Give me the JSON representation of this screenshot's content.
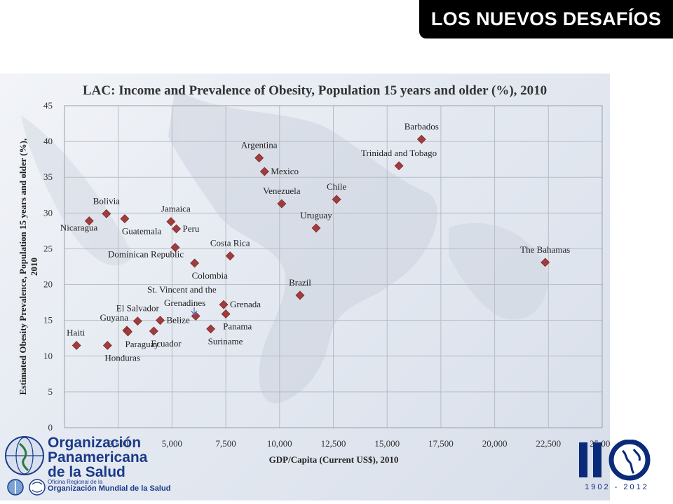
{
  "slide": {
    "title": "LOS NUEVOS DESAFÍOS"
  },
  "logos": {
    "ops_lines": [
      "Organización",
      "Panamericana",
      "de la Salud"
    ],
    "ops_small_lines": [
      "Oficina Regional de la"
    ],
    "oms_line": "Organización Mundial de la Salud",
    "anniversary_number": "110",
    "anniversary_years": "1902 - 2012"
  },
  "colors": {
    "marker": "#a23c3c",
    "grid": "#b8bcc4",
    "title_bar": "#000000",
    "logo_blue": "#1a3a8a"
  },
  "chart_data": {
    "type": "scatter",
    "title": "LAC: Income and Prevalence of Obesity, Population 15 years and older (%), 2010",
    "xlabel": "GDP/Capita (Current US$), 2010",
    "ylabel_lines": [
      "Estimated Obesity Prevalence, Population 15 years and older (%),",
      "2010"
    ],
    "xlim": [
      0,
      25000
    ],
    "ylim": [
      0,
      45
    ],
    "x_ticks": [
      0,
      2500,
      5000,
      7500,
      10000,
      12500,
      15000,
      17500,
      20000,
      22500,
      25000
    ],
    "x_tick_labels": [
      "",
      "2,500",
      "5,000",
      "7,500",
      "10,000",
      "12,500",
      "15,000",
      "17,500",
      "20,000",
      "22,500",
      "25,000"
    ],
    "y_ticks": [
      0,
      5,
      10,
      15,
      20,
      25,
      30,
      35,
      40,
      45
    ],
    "y_tick_labels": [
      "0",
      "5",
      "10",
      "15",
      "20",
      "25",
      "30",
      "35",
      "40",
      "45"
    ],
    "grid": true,
    "marker": "diamond",
    "points": [
      {
        "name": "Haiti",
        "x": 560,
        "y": 11.5,
        "lab": "above-right"
      },
      {
        "name": "Honduras",
        "x": 2000,
        "y": 11.5,
        "lab": "below-right"
      },
      {
        "name": "Nicaragua",
        "x": 1150,
        "y": 28.9,
        "lab": "below-left"
      },
      {
        "name": "Bolivia",
        "x": 1950,
        "y": 29.9,
        "lab": "above"
      },
      {
        "name": "Guatemala",
        "x": 2800,
        "y": 29.2,
        "lab": "below-right"
      },
      {
        "name": "Guyana",
        "x": 2900,
        "y": 13.6,
        "lab": "above-left"
      },
      {
        "name": "Paraguay",
        "x": 2950,
        "y": 13.4,
        "lab": "below-right"
      },
      {
        "name": "El Salvador",
        "x": 3400,
        "y": 14.9,
        "lab": "above"
      },
      {
        "name": "Belize",
        "x": 4450,
        "y": 15.0,
        "lab": "right"
      },
      {
        "name": "Ecuador",
        "x": 4150,
        "y": 13.5,
        "lab": "below-right"
      },
      {
        "name": "Jamaica",
        "x": 4950,
        "y": 28.8,
        "lab": "above-right"
      },
      {
        "name": "Peru",
        "x": 5200,
        "y": 27.8,
        "lab": "right"
      },
      {
        "name": "Dominican Republic",
        "x": 5150,
        "y": 25.2,
        "lab": "below-left"
      },
      {
        "name": "Colombia",
        "x": 6050,
        "y": 23.0,
        "lab": "below-right"
      },
      {
        "name": "St. Vincent and the Grenadines",
        "x": 6100,
        "y": 15.6,
        "lab": "custom-svg"
      },
      {
        "name": "Costa Rica",
        "x": 7700,
        "y": 24.0,
        "lab": "above"
      },
      {
        "name": "Grenada",
        "x": 7400,
        "y": 17.2,
        "lab": "right"
      },
      {
        "name": "Panama",
        "x": 7500,
        "y": 15.9,
        "lab": "below-right"
      },
      {
        "name": "Suriname",
        "x": 6800,
        "y": 13.8,
        "lab": "below-right"
      },
      {
        "name": "Argentina",
        "x": 9050,
        "y": 37.7,
        "lab": "above"
      },
      {
        "name": "Mexico",
        "x": 9300,
        "y": 35.8,
        "lab": "right"
      },
      {
        "name": "Venezuela",
        "x": 10100,
        "y": 31.3,
        "lab": "above"
      },
      {
        "name": "Brazil",
        "x": 10950,
        "y": 18.5,
        "lab": "above"
      },
      {
        "name": "Uruguay",
        "x": 11700,
        "y": 27.9,
        "lab": "above"
      },
      {
        "name": "Chile",
        "x": 12650,
        "y": 31.9,
        "lab": "above"
      },
      {
        "name": "Trinidad and Tobago",
        "x": 15550,
        "y": 36.6,
        "lab": "above"
      },
      {
        "name": "Barbados",
        "x": 16600,
        "y": 40.3,
        "lab": "above"
      },
      {
        "name": "The Bahamas",
        "x": 22350,
        "y": 23.1,
        "lab": "above"
      }
    ]
  }
}
